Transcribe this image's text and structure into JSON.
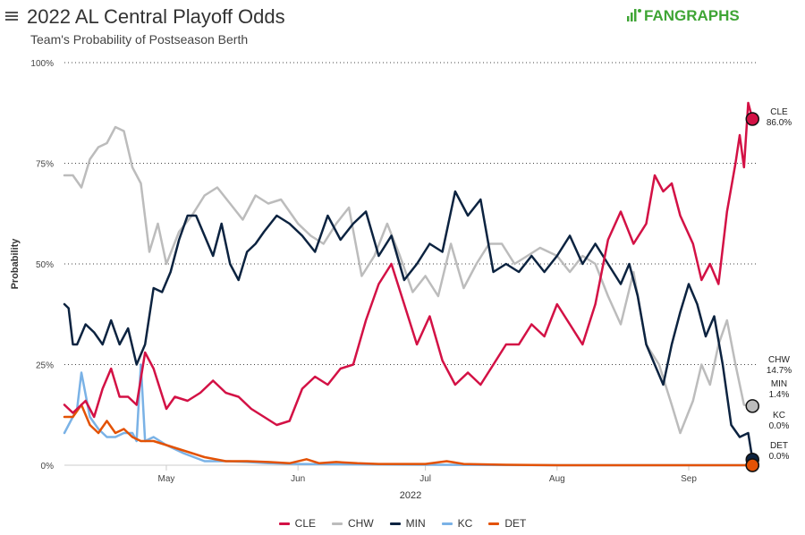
{
  "header": {
    "title": "2022 AL Central Playoff Odds",
    "subtitle": "Team's Probability of Postseason Berth",
    "logo_text": "FANGRAPHS",
    "menu_icon": "hamburger-icon"
  },
  "chart_data": {
    "type": "line",
    "title": "2022 AL Central Playoff Odds",
    "subtitle": "Team's Probability of Postseason Berth",
    "xlabel": "2022",
    "ylabel": "Probability",
    "x_range": [
      "2022-04-07",
      "2022-09-17"
    ],
    "y_range": [
      0,
      100
    ],
    "x_ticks": [
      {
        "label": "May",
        "date": "2022-05-01"
      },
      {
        "label": "Jun",
        "date": "2022-06-01"
      },
      {
        "label": "Jul",
        "date": "2022-07-01"
      },
      {
        "label": "Aug",
        "date": "2022-08-01"
      },
      {
        "label": "Sep",
        "date": "2022-09-01"
      }
    ],
    "y_ticks": [
      {
        "label": "0%",
        "value": 0
      },
      {
        "label": "25%",
        "value": 25
      },
      {
        "label": "50%",
        "value": 50
      },
      {
        "label": "75%",
        "value": 75
      },
      {
        "label": "100%",
        "value": 100
      }
    ],
    "grid": "horizontal dotted",
    "legend_position": "bottom",
    "series": [
      {
        "name": "CLE",
        "color": "#d31145",
        "end_label": "CLE",
        "end_value_label": "86.0%",
        "points": [
          [
            "2022-04-07",
            15
          ],
          [
            "2022-04-09",
            13
          ],
          [
            "2022-04-12",
            16
          ],
          [
            "2022-04-14",
            12
          ],
          [
            "2022-04-16",
            19
          ],
          [
            "2022-04-18",
            24
          ],
          [
            "2022-04-20",
            17
          ],
          [
            "2022-04-22",
            17
          ],
          [
            "2022-04-24",
            15
          ],
          [
            "2022-04-26",
            28
          ],
          [
            "2022-04-28",
            24
          ],
          [
            "2022-05-01",
            14
          ],
          [
            "2022-05-03",
            17
          ],
          [
            "2022-05-06",
            16
          ],
          [
            "2022-05-09",
            18
          ],
          [
            "2022-05-12",
            21
          ],
          [
            "2022-05-15",
            18
          ],
          [
            "2022-05-18",
            17
          ],
          [
            "2022-05-21",
            14
          ],
          [
            "2022-05-24",
            12
          ],
          [
            "2022-05-27",
            10
          ],
          [
            "2022-05-30",
            11
          ],
          [
            "2022-06-02",
            19
          ],
          [
            "2022-06-05",
            22
          ],
          [
            "2022-06-08",
            20
          ],
          [
            "2022-06-11",
            24
          ],
          [
            "2022-06-14",
            25
          ],
          [
            "2022-06-17",
            36
          ],
          [
            "2022-06-20",
            45
          ],
          [
            "2022-06-23",
            50
          ],
          [
            "2022-06-26",
            40
          ],
          [
            "2022-06-29",
            30
          ],
          [
            "2022-07-02",
            37
          ],
          [
            "2022-07-05",
            26
          ],
          [
            "2022-07-08",
            20
          ],
          [
            "2022-07-11",
            23
          ],
          [
            "2022-07-14",
            20
          ],
          [
            "2022-07-17",
            25
          ],
          [
            "2022-07-20",
            30
          ],
          [
            "2022-07-23",
            30
          ],
          [
            "2022-07-26",
            35
          ],
          [
            "2022-07-29",
            32
          ],
          [
            "2022-08-01",
            40
          ],
          [
            "2022-08-04",
            35
          ],
          [
            "2022-08-07",
            30
          ],
          [
            "2022-08-10",
            40
          ],
          [
            "2022-08-13",
            56
          ],
          [
            "2022-08-16",
            63
          ],
          [
            "2022-08-19",
            55
          ],
          [
            "2022-08-22",
            60
          ],
          [
            "2022-08-24",
            72
          ],
          [
            "2022-08-26",
            68
          ],
          [
            "2022-08-28",
            70
          ],
          [
            "2022-08-30",
            62
          ],
          [
            "2022-09-02",
            55
          ],
          [
            "2022-09-04",
            46
          ],
          [
            "2022-09-06",
            50
          ],
          [
            "2022-09-08",
            45
          ],
          [
            "2022-09-10",
            63
          ],
          [
            "2022-09-12",
            75
          ],
          [
            "2022-09-13",
            82
          ],
          [
            "2022-09-14",
            74
          ],
          [
            "2022-09-15",
            90
          ],
          [
            "2022-09-16",
            86
          ]
        ]
      },
      {
        "name": "CHW",
        "color": "#bcbcbc",
        "end_label": "CHW",
        "end_value_label": "14.7%",
        "points": [
          [
            "2022-04-07",
            72
          ],
          [
            "2022-04-09",
            72
          ],
          [
            "2022-04-11",
            69
          ],
          [
            "2022-04-13",
            76
          ],
          [
            "2022-04-15",
            79
          ],
          [
            "2022-04-17",
            80
          ],
          [
            "2022-04-19",
            84
          ],
          [
            "2022-04-21",
            83
          ],
          [
            "2022-04-23",
            74
          ],
          [
            "2022-04-25",
            70
          ],
          [
            "2022-04-27",
            53
          ],
          [
            "2022-04-29",
            60
          ],
          [
            "2022-05-01",
            50
          ],
          [
            "2022-05-04",
            58
          ],
          [
            "2022-05-07",
            62
          ],
          [
            "2022-05-10",
            67
          ],
          [
            "2022-05-13",
            69
          ],
          [
            "2022-05-16",
            65
          ],
          [
            "2022-05-19",
            61
          ],
          [
            "2022-05-22",
            67
          ],
          [
            "2022-05-25",
            65
          ],
          [
            "2022-05-28",
            66
          ],
          [
            "2022-06-01",
            60
          ],
          [
            "2022-06-04",
            57
          ],
          [
            "2022-06-07",
            55
          ],
          [
            "2022-06-10",
            60
          ],
          [
            "2022-06-13",
            64
          ],
          [
            "2022-06-16",
            47
          ],
          [
            "2022-06-19",
            52
          ],
          [
            "2022-06-22",
            60
          ],
          [
            "2022-06-25",
            52
          ],
          [
            "2022-06-28",
            43
          ],
          [
            "2022-07-01",
            47
          ],
          [
            "2022-07-04",
            42
          ],
          [
            "2022-07-07",
            55
          ],
          [
            "2022-07-10",
            44
          ],
          [
            "2022-07-13",
            50
          ],
          [
            "2022-07-16",
            55
          ],
          [
            "2022-07-19",
            55
          ],
          [
            "2022-07-22",
            50
          ],
          [
            "2022-07-25",
            52
          ],
          [
            "2022-07-28",
            54
          ],
          [
            "2022-08-01",
            52
          ],
          [
            "2022-08-04",
            48
          ],
          [
            "2022-08-07",
            52
          ],
          [
            "2022-08-10",
            50
          ],
          [
            "2022-08-13",
            42
          ],
          [
            "2022-08-16",
            35
          ],
          [
            "2022-08-19",
            48
          ],
          [
            "2022-08-22",
            30
          ],
          [
            "2022-08-25",
            25
          ],
          [
            "2022-08-28",
            15
          ],
          [
            "2022-08-30",
            8
          ],
          [
            "2022-09-02",
            16
          ],
          [
            "2022-09-04",
            25
          ],
          [
            "2022-09-06",
            20
          ],
          [
            "2022-09-08",
            30
          ],
          [
            "2022-09-10",
            36
          ],
          [
            "2022-09-12",
            25
          ],
          [
            "2022-09-14",
            15
          ],
          [
            "2022-09-16",
            14.7
          ]
        ]
      },
      {
        "name": "MIN",
        "color": "#0c2340",
        "end_label": "MIN",
        "end_value_label": "1.4%",
        "points": [
          [
            "2022-04-07",
            40
          ],
          [
            "2022-04-08",
            39
          ],
          [
            "2022-04-09",
            30
          ],
          [
            "2022-04-10",
            30
          ],
          [
            "2022-04-12",
            35
          ],
          [
            "2022-04-14",
            33
          ],
          [
            "2022-04-16",
            30
          ],
          [
            "2022-04-18",
            36
          ],
          [
            "2022-04-20",
            30
          ],
          [
            "2022-04-22",
            34
          ],
          [
            "2022-04-24",
            25
          ],
          [
            "2022-04-26",
            30
          ],
          [
            "2022-04-28",
            44
          ],
          [
            "2022-04-30",
            43
          ],
          [
            "2022-05-02",
            48
          ],
          [
            "2022-05-04",
            56
          ],
          [
            "2022-05-06",
            62
          ],
          [
            "2022-05-08",
            62
          ],
          [
            "2022-05-10",
            57
          ],
          [
            "2022-05-12",
            52
          ],
          [
            "2022-05-14",
            60
          ],
          [
            "2022-05-16",
            50
          ],
          [
            "2022-05-18",
            46
          ],
          [
            "2022-05-20",
            53
          ],
          [
            "2022-05-22",
            55
          ],
          [
            "2022-05-24",
            58
          ],
          [
            "2022-05-27",
            62
          ],
          [
            "2022-05-30",
            60
          ],
          [
            "2022-06-02",
            57
          ],
          [
            "2022-06-05",
            53
          ],
          [
            "2022-06-08",
            62
          ],
          [
            "2022-06-11",
            56
          ],
          [
            "2022-06-14",
            60
          ],
          [
            "2022-06-17",
            63
          ],
          [
            "2022-06-20",
            52
          ],
          [
            "2022-06-23",
            57
          ],
          [
            "2022-06-26",
            46
          ],
          [
            "2022-06-29",
            50
          ],
          [
            "2022-07-02",
            55
          ],
          [
            "2022-07-05",
            53
          ],
          [
            "2022-07-08",
            68
          ],
          [
            "2022-07-11",
            62
          ],
          [
            "2022-07-14",
            66
          ],
          [
            "2022-07-17",
            48
          ],
          [
            "2022-07-20",
            50
          ],
          [
            "2022-07-23",
            48
          ],
          [
            "2022-07-26",
            52
          ],
          [
            "2022-07-29",
            48
          ],
          [
            "2022-08-01",
            52
          ],
          [
            "2022-08-04",
            57
          ],
          [
            "2022-08-07",
            50
          ],
          [
            "2022-08-10",
            55
          ],
          [
            "2022-08-13",
            50
          ],
          [
            "2022-08-16",
            45
          ],
          [
            "2022-08-18",
            50
          ],
          [
            "2022-08-20",
            42
          ],
          [
            "2022-08-22",
            30
          ],
          [
            "2022-08-24",
            25
          ],
          [
            "2022-08-26",
            20
          ],
          [
            "2022-08-28",
            30
          ],
          [
            "2022-08-30",
            38
          ],
          [
            "2022-09-01",
            45
          ],
          [
            "2022-09-03",
            40
          ],
          [
            "2022-09-05",
            32
          ],
          [
            "2022-09-07",
            37
          ],
          [
            "2022-09-09",
            25
          ],
          [
            "2022-09-11",
            10
          ],
          [
            "2022-09-13",
            7
          ],
          [
            "2022-09-15",
            8
          ],
          [
            "2022-09-16",
            1.4
          ]
        ]
      },
      {
        "name": "KC",
        "color": "#7ab2e6",
        "end_label": "KC",
        "end_value_label": "0.0%",
        "points": [
          [
            "2022-04-07",
            8
          ],
          [
            "2022-04-08",
            10
          ],
          [
            "2022-04-10",
            14
          ],
          [
            "2022-04-11",
            23
          ],
          [
            "2022-04-13",
            12
          ],
          [
            "2022-04-15",
            9
          ],
          [
            "2022-04-17",
            7
          ],
          [
            "2022-04-19",
            7
          ],
          [
            "2022-04-21",
            8
          ],
          [
            "2022-04-23",
            8
          ],
          [
            "2022-04-24",
            6
          ],
          [
            "2022-04-25",
            25
          ],
          [
            "2022-04-26",
            6
          ],
          [
            "2022-04-28",
            7
          ],
          [
            "2022-05-01",
            5
          ],
          [
            "2022-05-05",
            3
          ],
          [
            "2022-05-10",
            1
          ],
          [
            "2022-05-15",
            1
          ],
          [
            "2022-05-20",
            0.8
          ],
          [
            "2022-05-25",
            0.5
          ],
          [
            "2022-06-01",
            0.3
          ],
          [
            "2022-06-15",
            0.2
          ],
          [
            "2022-07-01",
            0.1
          ],
          [
            "2022-08-01",
            0
          ],
          [
            "2022-09-16",
            0
          ]
        ]
      },
      {
        "name": "DET",
        "color": "#e35205",
        "end_label": "DET",
        "end_value_label": "0.0%",
        "points": [
          [
            "2022-04-07",
            12
          ],
          [
            "2022-04-09",
            12
          ],
          [
            "2022-04-11",
            15
          ],
          [
            "2022-04-13",
            10
          ],
          [
            "2022-04-15",
            8
          ],
          [
            "2022-04-17",
            11
          ],
          [
            "2022-04-19",
            8
          ],
          [
            "2022-04-21",
            9
          ],
          [
            "2022-04-23",
            7
          ],
          [
            "2022-04-25",
            6
          ],
          [
            "2022-04-28",
            6
          ],
          [
            "2022-05-01",
            5
          ],
          [
            "2022-05-04",
            4
          ],
          [
            "2022-05-07",
            3
          ],
          [
            "2022-05-10",
            2
          ],
          [
            "2022-05-15",
            1
          ],
          [
            "2022-05-20",
            1
          ],
          [
            "2022-05-25",
            0.8
          ],
          [
            "2022-05-30",
            0.5
          ],
          [
            "2022-06-03",
            1.5
          ],
          [
            "2022-06-06",
            0.5
          ],
          [
            "2022-06-10",
            0.8
          ],
          [
            "2022-06-15",
            0.5
          ],
          [
            "2022-06-20",
            0.3
          ],
          [
            "2022-07-01",
            0.3
          ],
          [
            "2022-07-06",
            1
          ],
          [
            "2022-07-10",
            0.3
          ],
          [
            "2022-07-20",
            0.1
          ],
          [
            "2022-08-01",
            0
          ],
          [
            "2022-09-16",
            0
          ]
        ]
      }
    ]
  }
}
